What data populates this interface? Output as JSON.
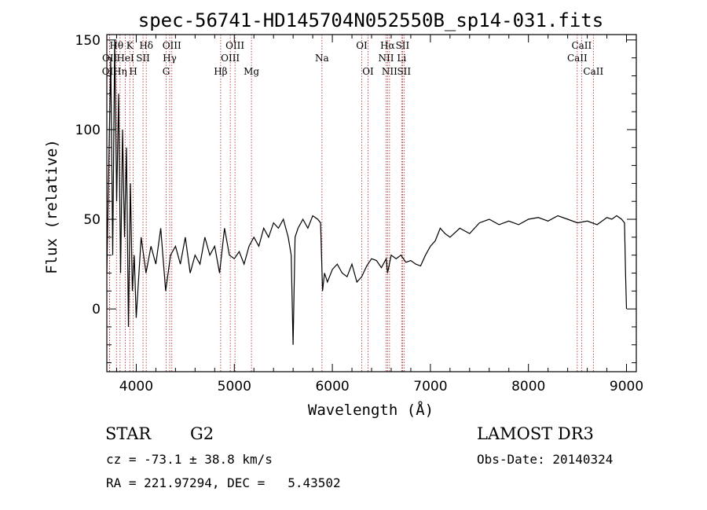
{
  "chart_data": {
    "type": "line",
    "title": "spec-56741-HD145704N052550B_sp14-031.fits",
    "xlabel": "Wavelength (Å)",
    "ylabel": "Flux (relative)",
    "xlim": [
      3700,
      9100
    ],
    "ylim": [
      -35,
      153
    ],
    "xticks": [
      4000,
      5000,
      6000,
      7000,
      8000,
      9000
    ],
    "yticks": [
      0,
      50,
      100,
      150
    ],
    "grid": false,
    "series": [
      {
        "color": "#000000",
        "x": [
          3700,
          3720,
          3740,
          3760,
          3780,
          3800,
          3820,
          3840,
          3860,
          3880,
          3900,
          3920,
          3940,
          3960,
          3980,
          4000,
          4050,
          4100,
          4150,
          4200,
          4250,
          4300,
          4350,
          4400,
          4450,
          4500,
          4550,
          4600,
          4650,
          4700,
          4750,
          4800,
          4850,
          4900,
          4950,
          5000,
          5050,
          5100,
          5150,
          5200,
          5250,
          5300,
          5350,
          5400,
          5450,
          5500,
          5550,
          5580,
          5600,
          5620,
          5650,
          5700,
          5750,
          5800,
          5850,
          5880,
          5890,
          5900,
          5920,
          5950,
          6000,
          6050,
          6100,
          6150,
          6200,
          6250,
          6300,
          6350,
          6400,
          6450,
          6500,
          6550,
          6563,
          6600,
          6650,
          6700,
          6750,
          6800,
          6850,
          6900,
          6950,
          7000,
          7050,
          7100,
          7150,
          7200,
          7300,
          7400,
          7500,
          7600,
          7700,
          7800,
          7900,
          8000,
          8100,
          8200,
          8300,
          8400,
          8500,
          8600,
          8700,
          8800,
          8850,
          8900,
          8950,
          8980,
          8990,
          9000
        ],
        "values": [
          20,
          80,
          140,
          30,
          150,
          60,
          120,
          20,
          100,
          40,
          90,
          -10,
          70,
          10,
          30,
          -5,
          40,
          20,
          35,
          25,
          45,
          10,
          30,
          35,
          25,
          40,
          20,
          30,
          25,
          40,
          30,
          35,
          20,
          45,
          30,
          28,
          32,
          25,
          35,
          40,
          35,
          45,
          40,
          48,
          45,
          50,
          40,
          30,
          -20,
          40,
          45,
          50,
          45,
          52,
          50,
          48,
          30,
          10,
          20,
          15,
          22,
          25,
          20,
          18,
          25,
          15,
          18,
          24,
          28,
          27,
          23,
          28,
          20,
          30,
          28,
          30,
          26,
          27,
          25,
          24,
          30,
          35,
          38,
          45,
          42,
          40,
          45,
          42,
          48,
          50,
          47,
          49,
          47,
          50,
          51,
          49,
          52,
          50,
          48,
          49,
          47,
          51,
          50,
          52,
          50,
          48,
          20,
          0
        ]
      }
    ],
    "spectral_lines": [
      {
        "label": "OII",
        "wavelength": 3727,
        "row": 3
      },
      {
        "label": "OII",
        "wavelength": 3729,
        "row": 2
      },
      {
        "label": "Hθ",
        "wavelength": 3798,
        "row": 1
      },
      {
        "label": "Hη",
        "wavelength": 3835,
        "row": 3
      },
      {
        "label": "HeI",
        "wavelength": 3889,
        "row": 2
      },
      {
        "label": "K",
        "wavelength": 3934,
        "row": 1
      },
      {
        "label": "H",
        "wavelength": 3969,
        "row": 3
      },
      {
        "label": "SII",
        "wavelength": 4069,
        "row": 2
      },
      {
        "label": "Hδ",
        "wavelength": 4102,
        "row": 1
      },
      {
        "label": "G",
        "wavelength": 4305,
        "row": 3
      },
      {
        "label": "Hγ",
        "wavelength": 4341,
        "row": 2
      },
      {
        "label": "OIII",
        "wavelength": 4363,
        "row": 1
      },
      {
        "label": "Hβ",
        "wavelength": 4861,
        "row": 3
      },
      {
        "label": "OIII",
        "wavelength": 4959,
        "row": 2
      },
      {
        "label": "OIII",
        "wavelength": 5007,
        "row": 1
      },
      {
        "label": "Mg",
        "wavelength": 5175,
        "row": 3
      },
      {
        "label": "Na",
        "wavelength": 5894,
        "row": 2
      },
      {
        "label": "OI",
        "wavelength": 6300,
        "row": 1
      },
      {
        "label": "OI",
        "wavelength": 6364,
        "row": 3
      },
      {
        "label": "NII",
        "wavelength": 6548,
        "row": 2
      },
      {
        "label": "Hα",
        "wavelength": 6563,
        "row": 1
      },
      {
        "label": "NII",
        "wavelength": 6583,
        "row": 3
      },
      {
        "label": "Li",
        "wavelength": 6707,
        "row": 2
      },
      {
        "label": "SII",
        "wavelength": 6716,
        "row": 1
      },
      {
        "label": "SII",
        "wavelength": 6731,
        "row": 3
      },
      {
        "label": "CaII",
        "wavelength": 8498,
        "row": 2
      },
      {
        "label": "CaII",
        "wavelength": 8542,
        "row": 1
      },
      {
        "label": "CaII",
        "wavelength": 8662,
        "row": 3
      }
    ],
    "line_marker_color": "#b22222"
  },
  "info": {
    "object_class": "STAR",
    "subclass": "G2",
    "survey": "LAMOST DR3",
    "cz": "cz = -73.1 ± 38.8 km/s",
    "obs_date": "Obs-Date: 20140324",
    "coords": "RA = 221.97294, DEC =   5.43502"
  }
}
